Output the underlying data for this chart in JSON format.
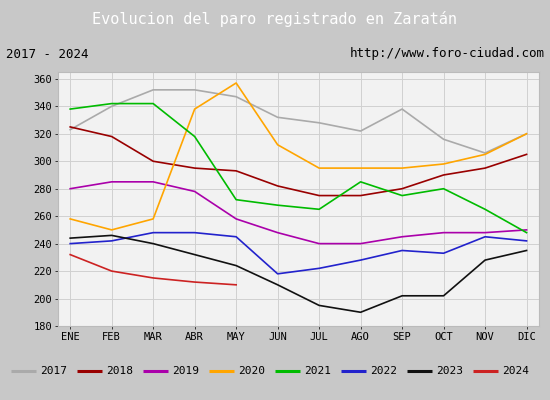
{
  "title": "Evolucion del paro registrado en Zaratán",
  "title_color": "#ffffff",
  "title_bg": "#5b8ec4",
  "subtitle_left": "2017 - 2024",
  "subtitle_right": "http://www.foro-ciudad.com",
  "months": [
    "ENE",
    "FEB",
    "MAR",
    "ABR",
    "MAY",
    "JUN",
    "JUL",
    "AGO",
    "SEP",
    "OCT",
    "NOV",
    "DIC"
  ],
  "ylim": [
    180,
    365
  ],
  "yticks": [
    180,
    200,
    220,
    240,
    260,
    280,
    300,
    320,
    340,
    360
  ],
  "series": {
    "2017": {
      "color": "#aaaaaa",
      "values": [
        323,
        340,
        352,
        352,
        347,
        332,
        328,
        322,
        338,
        316,
        306,
        320
      ]
    },
    "2018": {
      "color": "#990000",
      "values": [
        325,
        318,
        300,
        295,
        293,
        282,
        275,
        275,
        280,
        290,
        295,
        305
      ]
    },
    "2019": {
      "color": "#aa00aa",
      "values": [
        280,
        285,
        285,
        278,
        258,
        248,
        240,
        240,
        245,
        248,
        248,
        250
      ]
    },
    "2020": {
      "color": "#ffa500",
      "values": [
        258,
        250,
        258,
        338,
        357,
        312,
        295,
        295,
        295,
        298,
        305,
        320
      ]
    },
    "2021": {
      "color": "#00bb00",
      "values": [
        338,
        342,
        342,
        318,
        272,
        268,
        265,
        285,
        275,
        280,
        265,
        248
      ]
    },
    "2022": {
      "color": "#2222cc",
      "values": [
        240,
        242,
        248,
        248,
        245,
        218,
        222,
        228,
        235,
        233,
        245,
        242
      ]
    },
    "2023": {
      "color": "#111111",
      "values": [
        244,
        246,
        240,
        232,
        224,
        210,
        195,
        190,
        202,
        202,
        228,
        235
      ]
    },
    "2024": {
      "color": "#cc2222",
      "values": [
        232,
        220,
        215,
        212,
        210,
        null,
        null,
        null,
        null,
        null,
        null,
        null
      ]
    }
  },
  "legend_order": [
    "2017",
    "2018",
    "2019",
    "2020",
    "2021",
    "2022",
    "2023",
    "2024"
  ]
}
